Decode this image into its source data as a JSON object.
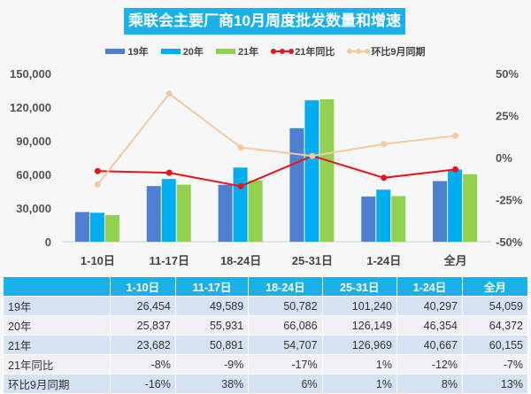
{
  "chart_data": {
    "type": "bar+line",
    "title": "乘联会主要厂商10月周度批发数量和增速",
    "categories": [
      "1-10日",
      "11-17日",
      "18-24日",
      "25-31日",
      "1-24日",
      "全月"
    ],
    "series": [
      {
        "name": "19年",
        "type": "bar",
        "axis": "left",
        "color": "#4e7fd1",
        "values": [
          26454,
          49589,
          50782,
          101240,
          40297,
          54059
        ]
      },
      {
        "name": "20年",
        "type": "bar",
        "axis": "left",
        "color": "#00aeef",
        "values": [
          25837,
          55931,
          66086,
          126149,
          46354,
          64372
        ]
      },
      {
        "name": "21年",
        "type": "bar",
        "axis": "left",
        "color": "#92d050",
        "values": [
          23682,
          50891,
          54707,
          126969,
          40667,
          60155
        ]
      },
      {
        "name": "21年同比",
        "type": "line",
        "axis": "right",
        "color": "#e8131b",
        "values": [
          -8,
          -9,
          -17,
          1,
          -12,
          -7
        ],
        "labels": [
          "-8%",
          "-9%",
          "-17%",
          "1%",
          "-12%",
          "-7%"
        ]
      },
      {
        "name": "环比9月同期",
        "type": "line",
        "axis": "right",
        "color": "#f7c9a0",
        "values": [
          -16,
          38,
          6,
          1,
          8,
          13
        ],
        "labels": [
          "-16%",
          "38%",
          "6%",
          "1%",
          "8%",
          "13%"
        ]
      }
    ],
    "left_axis": {
      "range": [
        0,
        150000
      ],
      "ticks": [
        "0",
        "30,000",
        "60,000",
        "90,000",
        "120,000",
        "150,000"
      ]
    },
    "right_axis": {
      "range": [
        -50,
        50
      ],
      "ticks": [
        "-50%",
        "-25%",
        "0%",
        "25%",
        "50%"
      ]
    },
    "legend_position": "top",
    "grid": false,
    "table": {
      "rows": [
        {
          "label": "19年",
          "cells": [
            "26,454",
            "49,589",
            "50,782",
            "101,240",
            "40,297",
            "54,059"
          ]
        },
        {
          "label": "20年",
          "cells": [
            "25,837",
            "55,931",
            "66,086",
            "126,149",
            "46,354",
            "64,372"
          ]
        },
        {
          "label": "21年",
          "cells": [
            "23,682",
            "50,891",
            "54,707",
            "126,969",
            "40,667",
            "60,155"
          ]
        },
        {
          "label": "21年同比",
          "cells": [
            "-8%",
            "-9%",
            "-17%",
            "1%",
            "-12%",
            "-7%"
          ]
        },
        {
          "label": "环比9月同期",
          "cells": [
            "-16%",
            "38%",
            "6%",
            "1%",
            "8%",
            "13%"
          ]
        }
      ]
    }
  }
}
